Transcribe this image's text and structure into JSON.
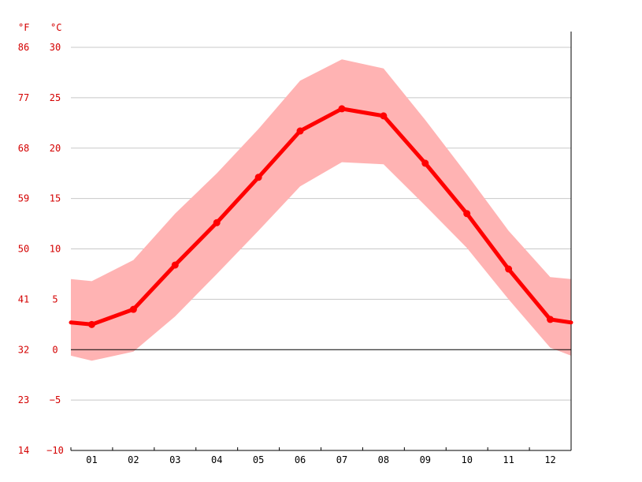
{
  "colors": {
    "accent": "#ff0000",
    "band": "#ffb3b3",
    "grid": "#c8c8c8",
    "axis": "#000000",
    "axis_label": "#d40000",
    "month_label": "#000000"
  },
  "chart_data": {
    "type": "line",
    "x_label_unit": "",
    "units": {
      "fahrenheit": "°F",
      "celsius": "°C"
    },
    "categories": [
      "01",
      "02",
      "03",
      "04",
      "05",
      "06",
      "07",
      "08",
      "09",
      "10",
      "11",
      "12"
    ],
    "y_ticks_celsius": [
      "30",
      "25",
      "20",
      "15",
      "10",
      "5",
      "0",
      "−5",
      "−10"
    ],
    "y_ticks_fahrenheit": [
      "86",
      "77",
      "68",
      "59",
      "50",
      "41",
      "32",
      "23",
      "14"
    ],
    "ylim": [
      -10,
      30
    ],
    "series": [
      {
        "values": [
          2.5,
          4,
          8.4,
          12.6,
          17.1,
          21.7,
          23.9,
          23.2,
          18.5,
          13.5,
          8.0,
          3.0
        ]
      }
    ],
    "band": {
      "upper": [
        6.8,
        8.9,
        13.5,
        17.5,
        21.9,
        26.7,
        28.8,
        27.9,
        22.8,
        17.4,
        11.8,
        7.2
      ],
      "lower": [
        -1.1,
        -0.2,
        3.3,
        7.5,
        11.8,
        16.2,
        18.6,
        18.4,
        14.3,
        10.1,
        5.0,
        0.2
      ]
    },
    "edge_values": {
      "left_mean": 2.7,
      "left_upper": 7.0,
      "left_lower": -0.6,
      "right_mean": 2.7,
      "right_upper": 7.0,
      "right_lower": -0.6
    },
    "grid": true
  }
}
